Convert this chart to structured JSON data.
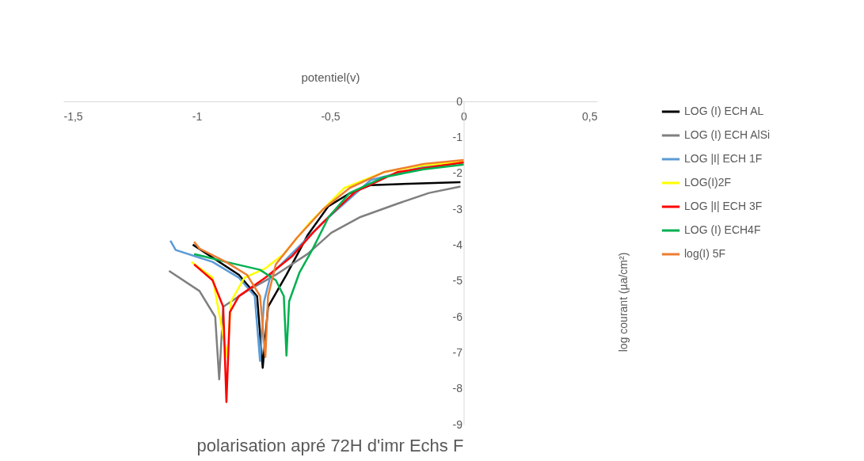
{
  "chart_data": {
    "type": "line",
    "title": "polarisation apré 72H d'imr Echs F",
    "xlabel": "potentiel(v)",
    "ylabel": "log courant (µa/cm²)",
    "xlim": [
      -1.5,
      0.5
    ],
    "xticks": [
      {
        "value": -1.5,
        "label": "-1,5"
      },
      -1,
      {
        "value": -0.5,
        "label": "-0,5"
      },
      0,
      {
        "value": 0.5,
        "label": "0,5"
      }
    ],
    "ylim": [
      -9,
      0
    ],
    "yticks": [
      0,
      -1,
      -2,
      -3,
      -4,
      -5,
      -6,
      -7,
      -8,
      -9
    ],
    "grid": false,
    "legend": "right",
    "marker": "none",
    "line_style": "solid",
    "series": [
      {
        "name": "LOG (I) ECH AL",
        "color": "#000000",
        "x": [
          -1.015,
          -0.842,
          -0.774,
          -0.753,
          -0.733,
          -0.664,
          -0.585,
          -0.507,
          -0.427,
          -0.348,
          -0.012
        ],
        "values": [
          -3.99,
          -4.83,
          -5.43,
          -7.42,
          -5.72,
          -4.83,
          -3.73,
          -2.92,
          -2.56,
          -2.33,
          -2.25
        ]
      },
      {
        "name": "LOG (I) ECH AlSi",
        "color": "#7f7f7f",
        "x": [
          -1.104,
          -0.99,
          -0.931,
          -0.916,
          -0.901,
          -0.812,
          -0.704,
          -0.585,
          -0.496,
          -0.387,
          -0.249,
          -0.13,
          -0.012
        ],
        "values": [
          -4.72,
          -5.28,
          -6.0,
          -7.74,
          -5.72,
          -5.28,
          -4.83,
          -4.25,
          -3.66,
          -3.22,
          -2.85,
          -2.55,
          -2.37
        ]
      },
      {
        "name": "LOG |I| ECH 1F",
        "color": "#5b9bd5",
        "x": [
          -1.099,
          -1.079,
          -0.941,
          -0.842,
          -0.783,
          -0.763,
          -0.748,
          -0.723,
          -0.625,
          -0.526,
          -0.348,
          -0.151,
          0.0
        ],
        "values": [
          -3.88,
          -4.14,
          -4.47,
          -4.91,
          -5.42,
          -7.23,
          -5.57,
          -4.83,
          -4.1,
          -3.36,
          -2.19,
          -1.82,
          -1.7
        ]
      },
      {
        "name": "LOG(I)2F",
        "color": "#ffff00",
        "x": [
          -1.02,
          -0.941,
          -0.886,
          -0.872,
          -0.822,
          -0.743,
          -0.674,
          -0.575,
          -0.447,
          -0.299,
          -0.15,
          0.0
        ],
        "values": [
          -4.47,
          -4.91,
          -7.12,
          -5.57,
          -4.91,
          -4.65,
          -4.25,
          -3.36,
          -2.41,
          -1.97,
          -1.78,
          -1.67
        ]
      },
      {
        "name": "LOG |I| ECH 3F",
        "color": "#ff0000",
        "x": [
          -1.01,
          -0.941,
          -0.901,
          -0.889,
          -0.876,
          -0.842,
          -0.743,
          -0.644,
          -0.565,
          -0.486,
          -0.407,
          -0.249,
          0.0
        ],
        "values": [
          -4.54,
          -4.98,
          -5.72,
          -8.37,
          -5.87,
          -5.42,
          -4.91,
          -4.32,
          -3.66,
          -3.07,
          -2.52,
          -1.97,
          -1.7
        ]
      },
      {
        "name": "LOG (I) ECH4F",
        "color": "#00b050",
        "x": [
          -1.01,
          -0.891,
          -0.763,
          -0.704,
          -0.674,
          -0.664,
          -0.654,
          -0.615,
          -0.565,
          -0.506,
          -0.427,
          -0.299,
          -0.15,
          0.0
        ],
        "values": [
          -4.25,
          -4.47,
          -4.69,
          -4.98,
          -5.42,
          -7.08,
          -5.57,
          -4.76,
          -4.1,
          -3.22,
          -2.55,
          -2.11,
          -1.89,
          -1.76
        ]
      },
      {
        "name": "log(I) 5F",
        "color": "#ed7d31",
        "x": [
          -1.01,
          -0.99,
          -0.891,
          -0.812,
          -0.763,
          -0.743,
          -0.733,
          -0.704,
          -0.625,
          -0.526,
          -0.427,
          -0.299,
          -0.15,
          0.0
        ],
        "values": [
          -3.91,
          -4.1,
          -4.47,
          -4.83,
          -5.42,
          -7.12,
          -5.42,
          -4.54,
          -3.8,
          -3.0,
          -2.41,
          -1.97,
          -1.74,
          -1.63
        ]
      }
    ]
  }
}
